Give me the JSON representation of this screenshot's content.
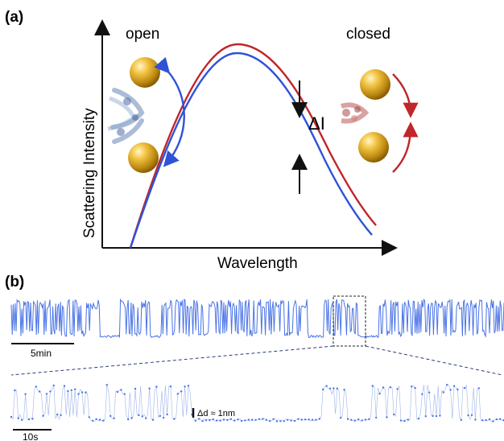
{
  "panel_a": {
    "label": "(a)",
    "state_open": "open",
    "state_closed": "closed",
    "ylabel": "Scattering Intensity",
    "xlabel": "Wavelength",
    "delta_label": "ΔI",
    "colors": {
      "open": "#2f52d8",
      "closed": "#c0262a",
      "gold": "#d9a520"
    }
  },
  "panel_b": {
    "label": "(b)",
    "scale_top": "5min",
    "scale_bottom": "10s",
    "delta_d": "Δd ≈ 1nm",
    "trace_color": "#4a74e6",
    "chart_data": [
      {
        "type": "line",
        "description_series": "long time trace",
        "series": [
          {
            "name": "",
            "segments": [
              {
                "state": "switching",
                "duration": 0.18
              },
              {
                "state": "open",
                "duration": 0.04
              },
              {
                "state": "switching",
                "duration": 0.06
              },
              {
                "state": "open",
                "duration": 0.02
              },
              {
                "state": "switching",
                "duration": 0.3
              },
              {
                "state": "open",
                "duration": 0.03
              },
              {
                "state": "switching",
                "duration": 0.07
              },
              {
                "state": "open",
                "duration": 0.04
              },
              {
                "state": "switching",
                "duration": 0.26
              }
            ]
          }
        ]
      },
      {
        "type": "scatter",
        "series": [
          {
            "name": "",
            "segments": [
              {
                "state": "switching",
                "duration": 0.16
              },
              {
                "state": "open",
                "duration": 0.03
              },
              {
                "state": "switching",
                "duration": 0.18
              },
              {
                "state": "open",
                "duration": 0.25
              },
              {
                "state": "switching",
                "duration": 0.06
              },
              {
                "state": "open",
                "duration": 0.04
              },
              {
                "state": "switching",
                "duration": 0.06
              },
              {
                "state": "open",
                "duration": 0.02
              },
              {
                "state": "switching",
                "duration": 0.14
              },
              {
                "state": "open",
                "duration": 0.06
              }
            ]
          }
        ]
      }
    ]
  }
}
